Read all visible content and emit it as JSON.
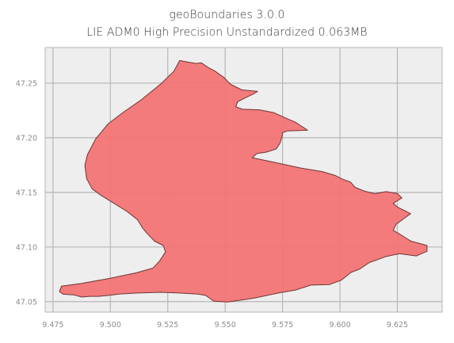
{
  "chart_data": {
    "type": "map",
    "title": "geoBoundaries 3.0.0",
    "subtitle": "LIE ADM0 High Precision Unstandardized 0.063MB",
    "xlabel": "",
    "ylabel": "",
    "xlim": [
      9.4716,
      9.6445
    ],
    "ylim": [
      47.0404,
      47.2826
    ],
    "x_ticks": [
      9.475,
      9.5,
      9.525,
      9.55,
      9.575,
      9.6,
      9.625
    ],
    "x_tick_labels": [
      "9.475",
      "9.500",
      "9.525",
      "9.550",
      "9.575",
      "9.600",
      "9.625"
    ],
    "y_ticks": [
      47.05,
      47.1,
      47.15,
      47.2,
      47.25
    ],
    "y_tick_labels": [
      "47.05",
      "47.10",
      "47.15",
      "47.20",
      "47.25"
    ],
    "grid": true,
    "colors": {
      "background": "#eeeeee",
      "grid": "#b6b6b6",
      "fill": "#f27474",
      "edge": "#6e3535",
      "tick_text": "#8c8c8c"
    },
    "boundary": [
      [
        9.5302,
        47.2707
      ],
      [
        9.534,
        47.2692
      ],
      [
        9.5374,
        47.268
      ],
      [
        9.5396,
        47.2687
      ],
      [
        9.5423,
        47.2647
      ],
      [
        9.5456,
        47.261
      ],
      [
        9.5493,
        47.2555
      ],
      [
        9.5524,
        47.2489
      ],
      [
        9.5573,
        47.2438
      ],
      [
        9.563,
        47.2427
      ],
      [
        9.5641,
        47.2424
      ],
      [
        9.5621,
        47.2399
      ],
      [
        9.5587,
        47.2365
      ],
      [
        9.5555,
        47.2331
      ],
      [
        9.5546,
        47.2284
      ],
      [
        9.5575,
        47.2261
      ],
      [
        9.5649,
        47.2256
      ],
      [
        9.5713,
        47.2229
      ],
      [
        9.577,
        47.2175
      ],
      [
        9.5804,
        47.2145
      ],
      [
        9.5859,
        47.2069
      ],
      [
        9.5773,
        47.2063
      ],
      [
        9.575,
        47.2047
      ],
      [
        9.5748,
        47.2012
      ],
      [
        9.5739,
        47.1949
      ],
      [
        9.5722,
        47.1896
      ],
      [
        9.568,
        47.1869
      ],
      [
        9.5638,
        47.1855
      ],
      [
        9.5618,
        47.1817
      ],
      [
        9.5708,
        47.1778
      ],
      [
        9.5827,
        47.1724
      ],
      [
        9.5921,
        47.1691
      ],
      [
        9.5976,
        47.1658
      ],
      [
        9.6013,
        47.162
      ],
      [
        9.6046,
        47.1594
      ],
      [
        9.6066,
        47.1546
      ],
      [
        9.6105,
        47.1513
      ],
      [
        9.6152,
        47.1488
      ],
      [
        9.6201,
        47.1507
      ],
      [
        9.625,
        47.149
      ],
      [
        9.627,
        47.145
      ],
      [
        9.6232,
        47.14
      ],
      [
        9.625,
        47.1366
      ],
      [
        9.6308,
        47.1305
      ],
      [
        9.6245,
        47.1209
      ],
      [
        9.6232,
        47.1153
      ],
      [
        9.6268,
        47.1108
      ],
      [
        9.6309,
        47.1054
      ],
      [
        9.6379,
        47.1014
      ],
      [
        9.6379,
        47.0961
      ],
      [
        9.6333,
        47.0918
      ],
      [
        9.6259,
        47.0939
      ],
      [
        9.6202,
        47.0914
      ],
      [
        9.6128,
        47.0857
      ],
      [
        9.6085,
        47.0797
      ],
      [
        9.6048,
        47.0767
      ],
      [
        9.6007,
        47.0698
      ],
      [
        9.5955,
        47.0656
      ],
      [
        9.5874,
        47.0651
      ],
      [
        9.5807,
        47.0606
      ],
      [
        9.573,
        47.0578
      ],
      [
        9.5628,
        47.0532
      ],
      [
        9.556,
        47.0511
      ],
      [
        9.551,
        47.0496
      ],
      [
        9.545,
        47.0505
      ],
      [
        9.5415,
        47.0557
      ],
      [
        9.538,
        47.0569
      ],
      [
        9.529,
        47.058
      ],
      [
        9.5218,
        47.0585
      ],
      [
        9.512,
        47.0579
      ],
      [
        9.5041,
        47.057
      ],
      [
        9.499,
        47.0556
      ],
      [
        9.495,
        47.0548
      ],
      [
        9.491,
        47.0548
      ],
      [
        9.4875,
        47.0542
      ],
      [
        9.484,
        47.0562
      ],
      [
        9.4794,
        47.0568
      ],
      [
        9.4778,
        47.0592
      ],
      [
        9.4787,
        47.0642
      ],
      [
        9.4872,
        47.0666
      ],
      [
        9.4998,
        47.0713
      ],
      [
        9.5113,
        47.0764
      ],
      [
        9.5186,
        47.0807
      ],
      [
        9.5215,
        47.0874
      ],
      [
        9.524,
        47.0954
      ],
      [
        9.5231,
        47.1013
      ],
      [
        9.5193,
        47.1053
      ],
      [
        9.5162,
        47.112
      ],
      [
        9.514,
        47.1174
      ],
      [
        9.5118,
        47.125
      ],
      [
        9.5073,
        47.1325
      ],
      [
        9.4955,
        47.1479
      ],
      [
        9.492,
        47.1534
      ],
      [
        9.4897,
        47.1626
      ],
      [
        9.4889,
        47.1748
      ],
      [
        9.49,
        47.1844
      ],
      [
        9.4936,
        47.199
      ],
      [
        9.499,
        47.2127
      ],
      [
        9.5052,
        47.2227
      ],
      [
        9.5135,
        47.2348
      ],
      [
        9.522,
        47.2493
      ],
      [
        9.5276,
        47.2607
      ],
      [
        9.5302,
        47.2707
      ]
    ]
  }
}
